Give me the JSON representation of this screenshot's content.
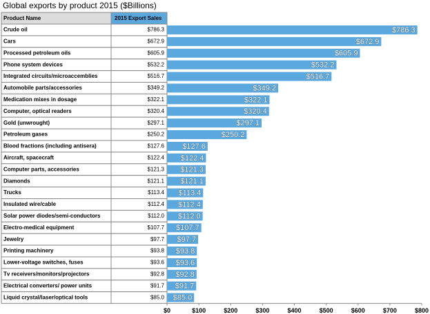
{
  "chart_data": {
    "type": "bar",
    "title": "Global exports by product 2015 ($Billions)",
    "columns": [
      "Product Name",
      "2015 Export Sales"
    ],
    "categories": [
      "Crude oil",
      "Cars",
      "Processed petroleum oils",
      "Phone system devices",
      "Integrated circuits/microaccemblies",
      "Automobile parts/accessories",
      "Medication mixes in dosage",
      "Computer, optical readers",
      "Gold (unwrought)",
      "Petroleum gases",
      "Blood fractions (including antisera)",
      "Aircraft, spacecraft",
      "Computer parts, accessories",
      "Diamonds",
      "Trucks",
      "Insulated wire/cable",
      "Solar power diodes/semi-conductors",
      "Electro-medical equipment",
      "Jewelry",
      "Printing machinery",
      "Lower-voltage switches, fuses",
      "Tv receivers/monitors/projectors",
      "Electrical converters/ power units",
      "Liquid crystal/laser/optical tools"
    ],
    "values": [
      786.3,
      672.9,
      605.9,
      532.2,
      516.7,
      349.2,
      322.1,
      320.4,
      297.1,
      250.2,
      127.6,
      122.4,
      121.3,
      121.1,
      113.4,
      112.4,
      112.0,
      107.7,
      97.7,
      93.8,
      93.6,
      92.8,
      91.7,
      85.0
    ],
    "value_labels": [
      "$786.3",
      "$672.9",
      "$605.9",
      "$532.2",
      "$516.7",
      "$349.2",
      "$322.1",
      "$320.4",
      "$297.1",
      "$250.2",
      "$127.6",
      "$122.4",
      "$121.3",
      "$121.1",
      "$113.4",
      "$112.4",
      "$112.0",
      "$107.7",
      "$97.7",
      "$93.8",
      "$93.6",
      "$92.8",
      "$91.7",
      "$85.0"
    ],
    "color": "#5aa8de",
    "xlim": [
      0,
      800
    ],
    "xticks": [
      {
        "value": 0,
        "label": "$0"
      },
      {
        "value": 100,
        "label": "$100"
      },
      {
        "value": 200,
        "label": "$200"
      },
      {
        "value": 300,
        "label": "$300"
      },
      {
        "value": 400,
        "label": "$400"
      },
      {
        "value": 500,
        "label": "$500"
      },
      {
        "value": 600,
        "label": "$600"
      },
      {
        "value": 700,
        "label": "$700"
      },
      {
        "value": 800,
        "label": "$800"
      }
    ]
  }
}
